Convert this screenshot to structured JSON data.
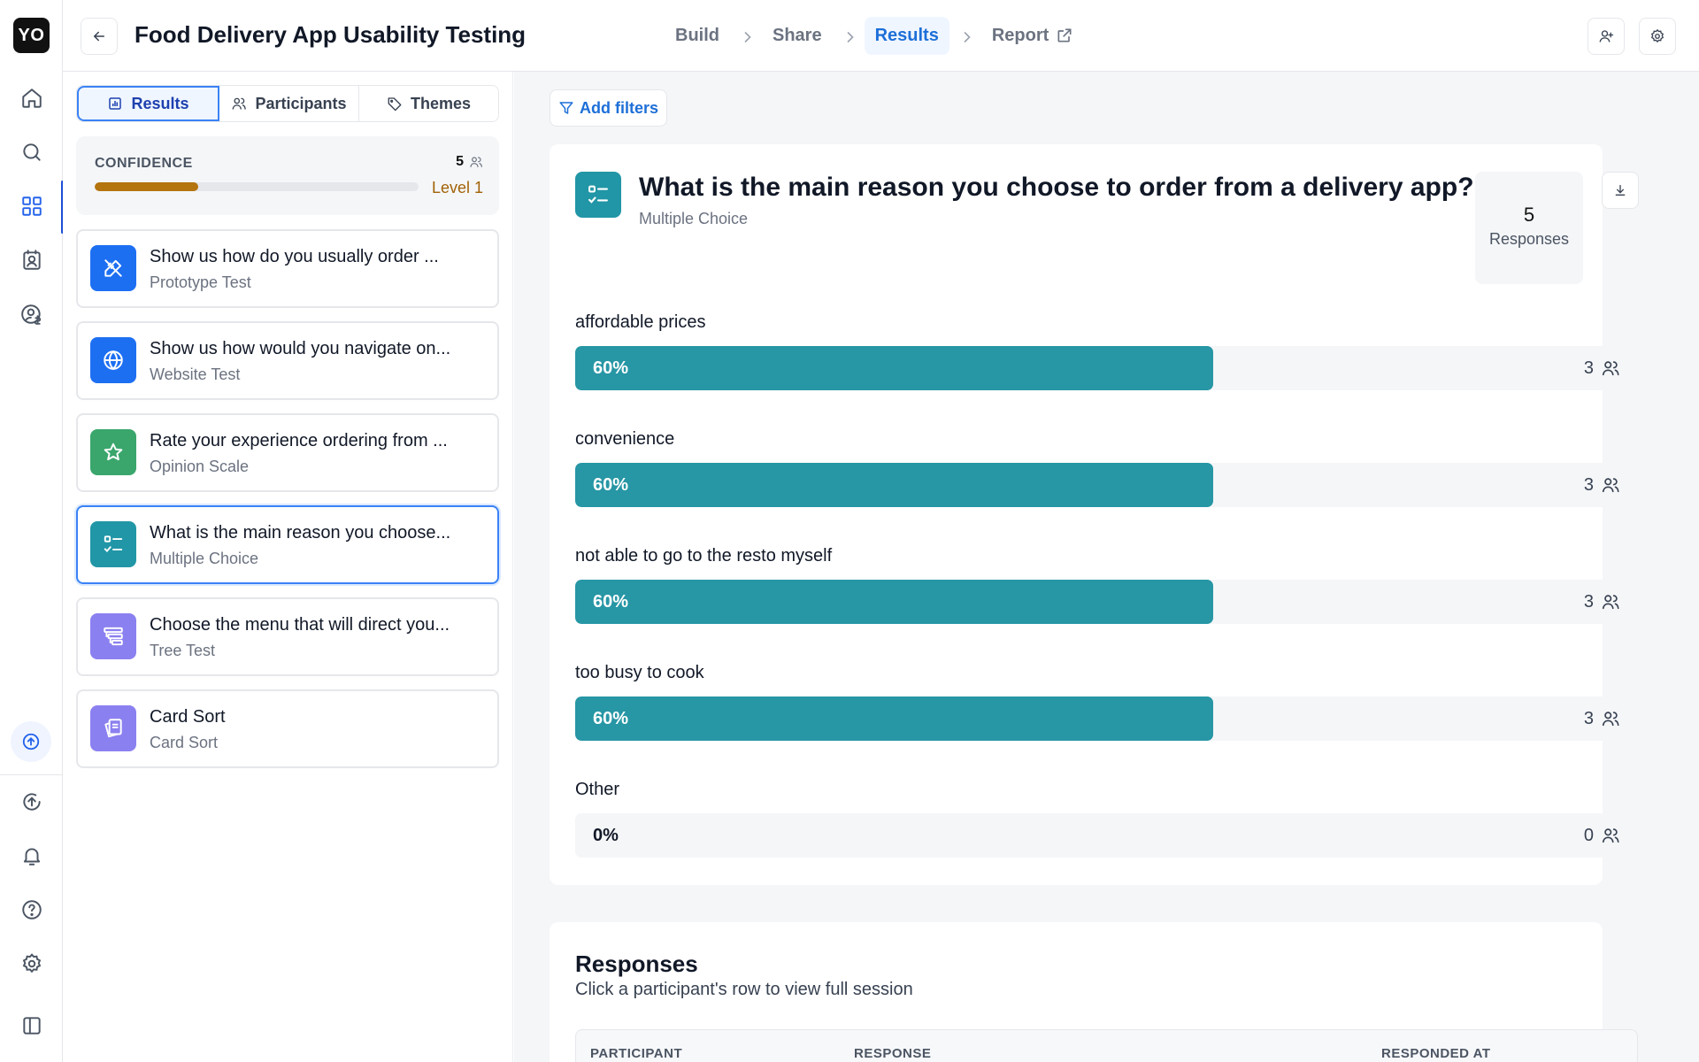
{
  "app": {
    "logo_text": "YO"
  },
  "header": {
    "title": "Food Delivery App Usability Testing",
    "crumbs": [
      {
        "label": "Build"
      },
      {
        "label": "Share"
      },
      {
        "label": "Results"
      },
      {
        "label": "Report"
      }
    ]
  },
  "sidebar_tabs": [
    {
      "label": "Results"
    },
    {
      "label": "Participants"
    },
    {
      "label": "Themes"
    }
  ],
  "confidence": {
    "label": "CONFIDENCE",
    "count": "5",
    "level": "Level 1",
    "progress_fraction": 0.32
  },
  "tasks": [
    {
      "title": "Show us how do you usually order ...",
      "type": "Prototype Test",
      "icon": "prototype-icon",
      "color": "#1d6ff2"
    },
    {
      "title": "Show us how would you navigate on...",
      "type": "Website Test",
      "icon": "globe-icon",
      "color": "#1d6ff2"
    },
    {
      "title": "Rate your experience ordering from ...",
      "type": "Opinion Scale",
      "icon": "star-icon",
      "color": "#3aa66c"
    },
    {
      "title": "What is the main reason you choose...",
      "type": "Multiple Choice",
      "icon": "checklist-icon",
      "color": "#2196a6"
    },
    {
      "title": "Choose the menu that will direct you...",
      "type": "Tree Test",
      "icon": "tree-icon",
      "color": "#8b80f0"
    },
    {
      "title": "Card Sort",
      "type": "Card Sort",
      "icon": "cards-icon",
      "color": "#8b80f0"
    }
  ],
  "main": {
    "filter_label": "Add filters",
    "question": {
      "title": "What is the main reason you choose to order from a delivery app?",
      "type": "Multiple Choice",
      "responses_count": "5",
      "responses_label": "Responses"
    },
    "options": [
      {
        "label": "affordable prices",
        "percent": 0.6,
        "pct_text": "60%",
        "count": "3"
      },
      {
        "label": "convenience",
        "percent": 0.6,
        "pct_text": "60%",
        "count": "3"
      },
      {
        "label": "not able to go to the resto myself",
        "percent": 0.6,
        "pct_text": "60%",
        "count": "3"
      },
      {
        "label": "too busy to cook",
        "percent": 0.6,
        "pct_text": "60%",
        "count": "3"
      },
      {
        "label": "Other",
        "percent": 0,
        "pct_text": "0%",
        "count": "0"
      }
    ],
    "responses": {
      "title": "Responses",
      "subtitle": "Click a participant's row to view full session",
      "columns": [
        "PARTICIPANT",
        "RESPONSE",
        "RESPONDED AT"
      ]
    }
  },
  "colors": {
    "accent": "#1d6fd8",
    "bar_fill": "#2796a5",
    "confidence_fill": "#b4740e"
  }
}
